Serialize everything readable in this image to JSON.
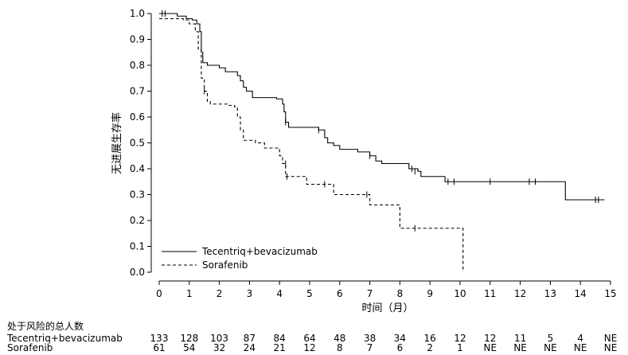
{
  "chart_data": {
    "type": "line",
    "title": "",
    "xlabel": "时间（月）",
    "ylabel": "无进展生存率",
    "xlim": [
      0,
      15
    ],
    "ylim": [
      0,
      1.0
    ],
    "x_ticks": [
      "0",
      "1",
      "2",
      "3",
      "4",
      "5",
      "6",
      "7",
      "8",
      "9",
      "10",
      "11",
      "12",
      "13",
      "14",
      "15"
    ],
    "y_ticks": [
      "0.0",
      "0.1",
      "0.2",
      "0.3",
      "0.4",
      "0.5",
      "0.6",
      "0.7",
      "0.8",
      "0.9",
      "1.0"
    ],
    "grid": false,
    "legend_position": "bottom-left",
    "series": [
      {
        "name": "Tecentriq+bevacizumab",
        "style": "solid",
        "color": "#000000",
        "steps": [
          [
            0,
            1.0
          ],
          [
            0.6,
            0.99
          ],
          [
            0.9,
            0.98
          ],
          [
            1.1,
            0.975
          ],
          [
            1.25,
            0.96
          ],
          [
            1.35,
            0.93
          ],
          [
            1.4,
            0.85
          ],
          [
            1.45,
            0.81
          ],
          [
            1.6,
            0.8
          ],
          [
            2.0,
            0.79
          ],
          [
            2.2,
            0.775
          ],
          [
            2.6,
            0.76
          ],
          [
            2.7,
            0.74
          ],
          [
            2.8,
            0.715
          ],
          [
            2.9,
            0.7
          ],
          [
            3.1,
            0.675
          ],
          [
            3.9,
            0.67
          ],
          [
            4.1,
            0.65
          ],
          [
            4.15,
            0.62
          ],
          [
            4.2,
            0.58
          ],
          [
            4.3,
            0.56
          ],
          [
            5.3,
            0.55
          ],
          [
            5.5,
            0.52
          ],
          [
            5.6,
            0.5
          ],
          [
            5.8,
            0.49
          ],
          [
            6.0,
            0.475
          ],
          [
            6.6,
            0.465
          ],
          [
            7.0,
            0.45
          ],
          [
            7.2,
            0.43
          ],
          [
            7.4,
            0.42
          ],
          [
            8.3,
            0.4
          ],
          [
            8.6,
            0.39
          ],
          [
            8.7,
            0.37
          ],
          [
            9.5,
            0.35
          ],
          [
            13.5,
            0.28
          ],
          [
            14.8,
            0.28
          ]
        ],
        "censor_marks": [
          [
            0.1,
            1.0
          ],
          [
            0.2,
            1.0
          ],
          [
            4.2,
            0.58
          ],
          [
            5.3,
            0.55
          ],
          [
            7.0,
            0.45
          ],
          [
            8.4,
            0.4
          ],
          [
            8.5,
            0.39
          ],
          [
            9.6,
            0.35
          ],
          [
            9.8,
            0.35
          ],
          [
            11.0,
            0.35
          ],
          [
            12.3,
            0.35
          ],
          [
            12.5,
            0.35
          ],
          [
            14.5,
            0.28
          ],
          [
            14.6,
            0.28
          ]
        ]
      },
      {
        "name": "Sorafenib",
        "style": "dashed",
        "color": "#000000",
        "steps": [
          [
            0,
            0.98
          ],
          [
            0.8,
            0.975
          ],
          [
            1.0,
            0.96
          ],
          [
            1.2,
            0.93
          ],
          [
            1.3,
            0.86
          ],
          [
            1.4,
            0.75
          ],
          [
            1.5,
            0.7
          ],
          [
            1.6,
            0.66
          ],
          [
            1.7,
            0.65
          ],
          [
            2.3,
            0.645
          ],
          [
            2.5,
            0.64
          ],
          [
            2.6,
            0.6
          ],
          [
            2.7,
            0.55
          ],
          [
            2.8,
            0.51
          ],
          [
            3.2,
            0.5
          ],
          [
            3.5,
            0.48
          ],
          [
            4.0,
            0.45
          ],
          [
            4.1,
            0.42
          ],
          [
            4.2,
            0.37
          ],
          [
            4.9,
            0.34
          ],
          [
            5.8,
            0.3
          ],
          [
            7.0,
            0.26
          ],
          [
            8.0,
            0.17
          ],
          [
            10.1,
            0.0
          ]
        ],
        "censor_marks": [
          [
            1.5,
            0.7
          ],
          [
            4.2,
            0.42
          ],
          [
            4.25,
            0.37
          ],
          [
            5.5,
            0.34
          ],
          [
            6.9,
            0.3
          ],
          [
            8.5,
            0.17
          ]
        ]
      }
    ],
    "risk_table": {
      "header": "处于风险的总人数",
      "rows": [
        {
          "label": "Tecentriq+bevacizumab",
          "values": [
            "133",
            "128",
            "103",
            "87",
            "84",
            "64",
            "48",
            "38",
            "34",
            "16",
            "12",
            "12",
            "11",
            "5",
            "4",
            "NE"
          ]
        },
        {
          "label": "Sorafenib",
          "values": [
            "61",
            "54",
            "32",
            "24",
            "21",
            "12",
            "8",
            "7",
            "6",
            "2",
            "1",
            "NE",
            "NE",
            "NE",
            "NE",
            "NE"
          ]
        }
      ]
    }
  }
}
